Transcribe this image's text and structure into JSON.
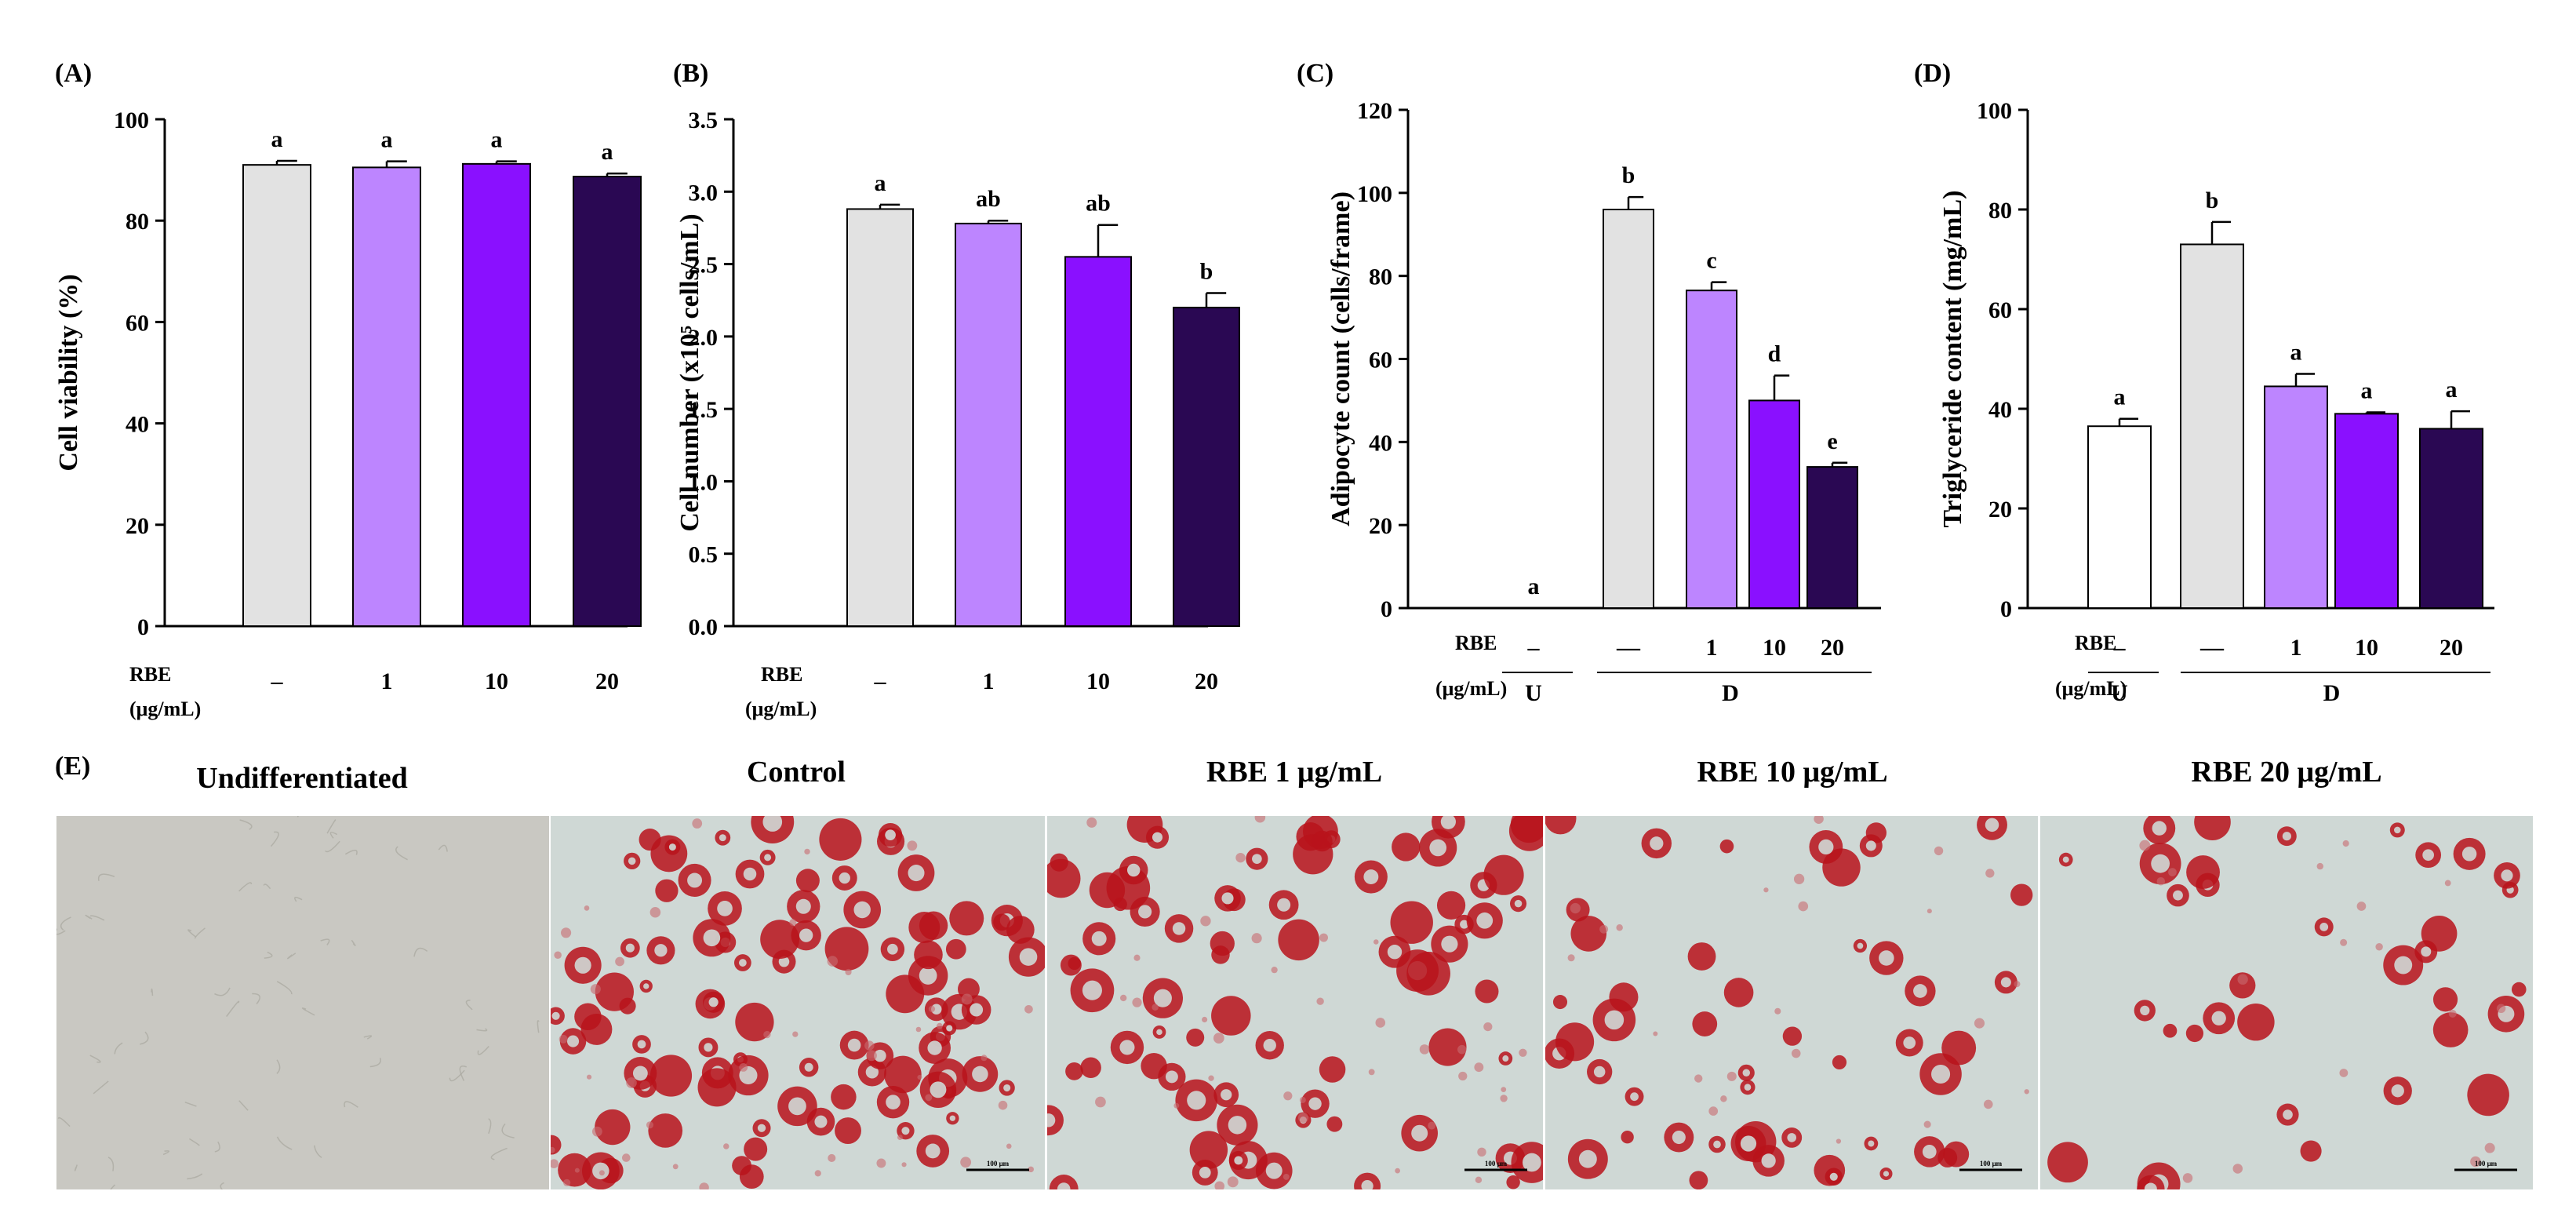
{
  "figure_panels": {
    "e_label": "(E)"
  },
  "colors": {
    "white": "#ffffff",
    "grey": "#e2e2e2",
    "light_purple": "#bd85ff",
    "purple": "#8a10ff",
    "dark_purple": "#2a0853",
    "oil_red": "#b8131b",
    "bg_undiff": "#c9c8c2",
    "bg_diff": "#cfd8d5"
  },
  "chart_data": [
    {
      "id": "A",
      "type": "bar",
      "panel_label": "(A)",
      "ylabel": "Cell viability (%)",
      "ylim": [
        0,
        100
      ],
      "yticks": [
        "0",
        "20",
        "40",
        "60",
        "80",
        "100"
      ],
      "rbe_label": "RBE",
      "unit_label": "(μg/mL)",
      "categories": [
        "–",
        "1",
        "10",
        "20"
      ],
      "values": [
        91,
        90.5,
        91.2,
        88.7
      ],
      "errors": [
        0.8,
        1.2,
        0.5,
        0.6
      ],
      "letters": [
        "a",
        "a",
        "a",
        "a"
      ],
      "bar_colors": [
        "#e2e2e2",
        "#bd85ff",
        "#8a10ff",
        "#2a0853"
      ],
      "groups": []
    },
    {
      "id": "B",
      "type": "bar",
      "panel_label": "(B)",
      "ylabel": "Cell number (x10⁵ cells/mL)",
      "ylim": [
        0,
        3.5
      ],
      "yticks": [
        "0.0",
        "0.5",
        "1.0",
        "1.5",
        "2.0",
        "2.5",
        "3.0",
        "3.5"
      ],
      "rbe_label": "RBE",
      "unit_label": "(μg/mL)",
      "categories": [
        "–",
        "1",
        "10",
        "20"
      ],
      "values": [
        2.88,
        2.78,
        2.55,
        2.2
      ],
      "errors": [
        0.03,
        0.02,
        0.22,
        0.1
      ],
      "letters": [
        "a",
        "ab",
        "ab",
        "b"
      ],
      "bar_colors": [
        "#e2e2e2",
        "#bd85ff",
        "#8a10ff",
        "#2a0853"
      ],
      "groups": []
    },
    {
      "id": "C",
      "type": "bar",
      "panel_label": "(C)",
      "ylabel": "Adipocyte count (cells/frame)",
      "ylim": [
        0,
        120
      ],
      "yticks": [
        "0",
        "20",
        "40",
        "60",
        "80",
        "100",
        "120"
      ],
      "rbe_label": "RBE",
      "unit_label": "(μg/mL)",
      "categories": [
        "–",
        "—",
        "1",
        "10",
        "20"
      ],
      "values": [
        0,
        96,
        76.5,
        50,
        34
      ],
      "errors": [
        0,
        3,
        2,
        6,
        1
      ],
      "letters": [
        "a",
        "b",
        "c",
        "d",
        "e"
      ],
      "bar_colors": [
        "#ffffff",
        "#e2e2e2",
        "#bd85ff",
        "#8a10ff",
        "#2a0853"
      ],
      "groups": [
        {
          "label": "U",
          "start": 0,
          "end": 0
        },
        {
          "label": "D",
          "start": 1,
          "end": 4
        }
      ]
    },
    {
      "id": "D",
      "type": "bar",
      "panel_label": "(D)",
      "ylabel": "Triglyceride content (mg/mL)",
      "ylim": [
        0,
        100
      ],
      "yticks": [
        "0",
        "20",
        "40",
        "60",
        "80",
        "100"
      ],
      "rbe_label": "RBE",
      "unit_label": "(μg/mL)",
      "categories": [
        "–",
        "—",
        "1",
        "10",
        "20"
      ],
      "values": [
        36.5,
        73,
        44.5,
        39,
        36
      ],
      "errors": [
        1.5,
        4.5,
        2.5,
        0.3,
        3.5
      ],
      "letters": [
        "a",
        "b",
        "a",
        "a",
        "a"
      ],
      "bar_colors": [
        "#ffffff",
        "#e2e2e2",
        "#bd85ff",
        "#8a10ff",
        "#2a0853"
      ],
      "groups": [
        {
          "label": "U",
          "start": 0,
          "end": 0
        },
        {
          "label": "D",
          "start": 1,
          "end": 4
        }
      ]
    }
  ],
  "micrographs": [
    {
      "label": "Undifferentiated",
      "scale_bar": "",
      "density": 0
    },
    {
      "label": "Control",
      "scale_bar": "100 μm",
      "density": 95
    },
    {
      "label": "RBE 1 μg/mL",
      "scale_bar": "100 μm",
      "density": 75
    },
    {
      "label": "RBE 10 μg/mL",
      "scale_bar": "100 μm",
      "density": 48
    },
    {
      "label": "RBE 20 μg/mL",
      "scale_bar": "100 μm",
      "density": 34
    }
  ]
}
